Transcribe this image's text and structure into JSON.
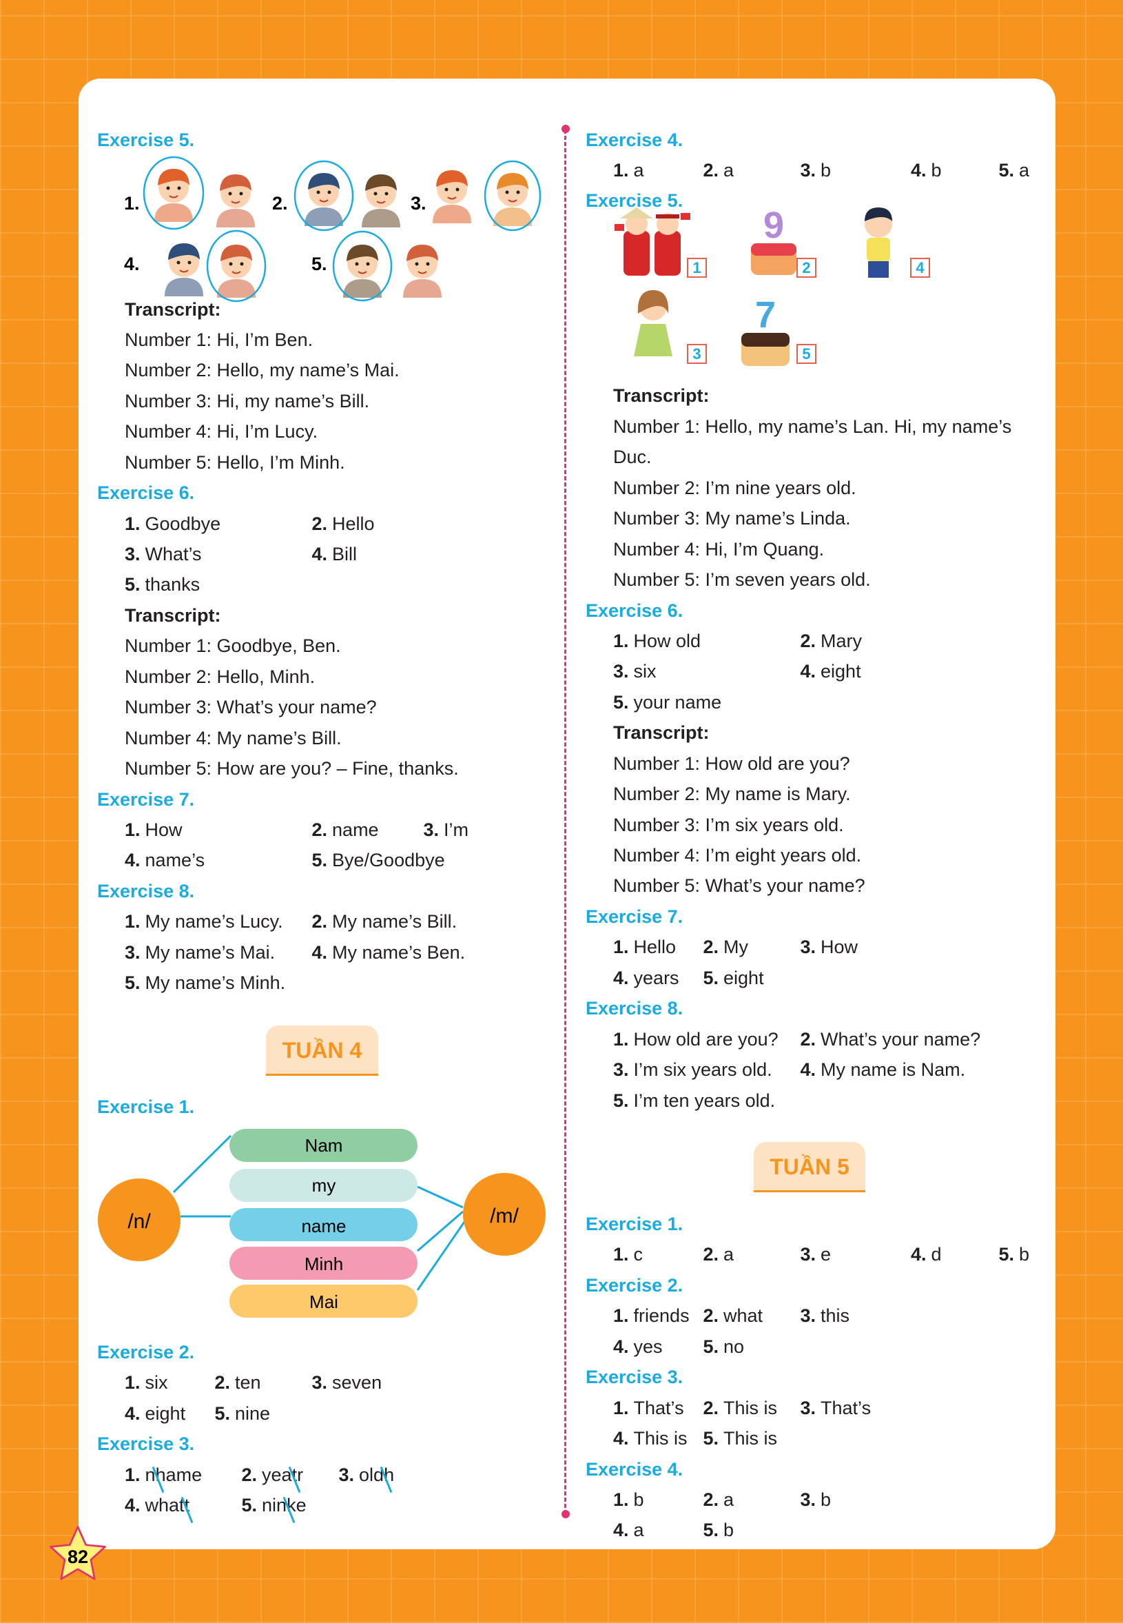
{
  "page_number": "82",
  "colors": {
    "background": "#f7941d",
    "heading": "#1aace0",
    "divider": "#e0336f",
    "tuan_label": "#f7941d"
  },
  "left": {
    "ex5": {
      "heading": "Exercise 5.",
      "numbers": [
        "1.",
        "2.",
        "3.",
        "4.",
        "5."
      ],
      "transcript_label": "Transcript:",
      "transcript": [
        "Number 1: Hi, I’m Ben.",
        "Number 2: Hello, my name’s Mai.",
        "Number 3: Hi, my name’s Bill.",
        "Number 4: Hi, I’m Lucy.",
        "Number 5: Hello, I’m Minh."
      ]
    },
    "ex6": {
      "heading": "Exercise 6.",
      "answers": [
        {
          "n": "1.",
          "t": "Goodbye"
        },
        {
          "n": "2.",
          "t": "Hello"
        },
        {
          "n": "3.",
          "t": "What’s"
        },
        {
          "n": "4.",
          "t": "Bill"
        },
        {
          "n": "5.",
          "t": "thanks"
        }
      ],
      "transcript_label": "Transcript:",
      "transcript": [
        "Number 1: Goodbye, Ben.",
        "Number 2: Hello, Minh.",
        "Number 3: What’s your name?",
        "Number 4: My name’s Bill.",
        "Number 5: How are you? – Fine, thanks."
      ]
    },
    "ex7": {
      "heading": "Exercise 7.",
      "answers": [
        {
          "n": "1.",
          "t": "How"
        },
        {
          "n": "2.",
          "t": "name"
        },
        {
          "n": "3.",
          "t": "I’m"
        },
        {
          "n": "4.",
          "t": "name’s"
        },
        {
          "n": "5.",
          "t": "Bye/Goodbye"
        }
      ]
    },
    "ex8": {
      "heading": "Exercise 8.",
      "answers": [
        {
          "n": "1.",
          "t": "My name’s Lucy."
        },
        {
          "n": "2.",
          "t": "My name’s Bill."
        },
        {
          "n": "3.",
          "t": "My name’s Mai."
        },
        {
          "n": "4.",
          "t": "My name’s Ben."
        },
        {
          "n": "5.",
          "t": "My name’s Minh."
        }
      ]
    },
    "tuan4": {
      "title": "TUẦN 4",
      "ex1": {
        "heading": "Exercise 1.",
        "left_sound": "/n/",
        "right_sound": "/m/",
        "words": [
          "Nam",
          "my",
          "name",
          "Minh",
          "Mai"
        ]
      },
      "ex2": {
        "heading": "Exercise 2.",
        "answers": [
          {
            "n": "1.",
            "t": "six"
          },
          {
            "n": "2.",
            "t": "ten"
          },
          {
            "n": "3.",
            "t": "seven"
          },
          {
            "n": "4.",
            "t": "eight"
          },
          {
            "n": "5.",
            "t": "nine"
          }
        ]
      },
      "ex3": {
        "heading": "Exercise 3.",
        "answers": [
          {
            "n": "1.",
            "pre": "n",
            "mark": "h",
            "post": "ame"
          },
          {
            "n": "2.",
            "pre": "yea",
            "mark": "t",
            "post": "r"
          },
          {
            "n": "3.",
            "pre": "old",
            "mark": "h",
            "post": ""
          },
          {
            "n": "4.",
            "pre": "what",
            "mark": "t",
            "post": ""
          },
          {
            "n": "5.",
            "pre": "nin",
            "mark": "k",
            "post": "e"
          }
        ]
      }
    }
  },
  "right": {
    "ex4": {
      "heading": "Exercise 4.",
      "answers": [
        {
          "n": "1.",
          "t": "a"
        },
        {
          "n": "2.",
          "t": "a"
        },
        {
          "n": "3.",
          "t": "b"
        },
        {
          "n": "4.",
          "t": "b"
        },
        {
          "n": "5.",
          "t": "a"
        }
      ]
    },
    "ex5": {
      "heading": "Exercise 5.",
      "labels": [
        "1",
        "2",
        "4",
        "3",
        "5"
      ],
      "transcript_label": "Transcript:",
      "transcript": [
        "Number 1: Hello, my name’s Lan. Hi, my name’s Duc.",
        "Number 2: I’m nine years old.",
        "Number 3: My name’s Linda.",
        "Number 4: Hi, I’m Quang.",
        "Number 5: I’m seven years old."
      ]
    },
    "ex6": {
      "heading": "Exercise 6.",
      "answers": [
        {
          "n": "1.",
          "t": "How old"
        },
        {
          "n": "2.",
          "t": "Mary"
        },
        {
          "n": "3.",
          "t": "six"
        },
        {
          "n": "4.",
          "t": "eight"
        },
        {
          "n": "5.",
          "t": "your name"
        }
      ],
      "transcript_label": "Transcript:",
      "transcript": [
        "Number 1: How old are you?",
        "Number 2: My name is Mary.",
        "Number 3: I’m six years old.",
        "Number 4: I’m eight years old.",
        "Number 5: What’s your name?"
      ]
    },
    "ex7": {
      "heading": "Exercise 7.",
      "answers": [
        {
          "n": "1.",
          "t": "Hello"
        },
        {
          "n": "2.",
          "t": "My"
        },
        {
          "n": "3.",
          "t": "How"
        },
        {
          "n": "4.",
          "t": "years"
        },
        {
          "n": "5.",
          "t": "eight"
        }
      ]
    },
    "ex8": {
      "heading": "Exercise 8.",
      "answers": [
        {
          "n": "1.",
          "t": "How old are you?"
        },
        {
          "n": "2.",
          "t": "What’s your name?"
        },
        {
          "n": "3.",
          "t": "I’m six years old."
        },
        {
          "n": "4.",
          "t": "My name is Nam."
        },
        {
          "n": "5.",
          "t": "I’m ten years old."
        }
      ]
    },
    "tuan5": {
      "title": "TUẦN 5",
      "ex1": {
        "heading": "Exercise 1.",
        "answers": [
          {
            "n": "1.",
            "t": "c"
          },
          {
            "n": "2.",
            "t": "a"
          },
          {
            "n": "3.",
            "t": "e"
          },
          {
            "n": "4.",
            "t": "d"
          },
          {
            "n": "5.",
            "t": "b"
          }
        ]
      },
      "ex2": {
        "heading": "Exercise 2.",
        "answers": [
          {
            "n": "1.",
            "t": "friends"
          },
          {
            "n": "2.",
            "t": "what"
          },
          {
            "n": "3.",
            "t": "this"
          },
          {
            "n": "4.",
            "t": "yes"
          },
          {
            "n": "5.",
            "t": "no"
          }
        ]
      },
      "ex3": {
        "heading": "Exercise 3.",
        "answers": [
          {
            "n": "1.",
            "t": "That’s"
          },
          {
            "n": "2.",
            "t": "This is"
          },
          {
            "n": "3.",
            "t": "That’s"
          },
          {
            "n": "4.",
            "t": "This is"
          },
          {
            "n": "5.",
            "t": "This is"
          }
        ]
      },
      "ex4": {
        "heading": "Exercise 4.",
        "answers": [
          {
            "n": "1.",
            "t": "b"
          },
          {
            "n": "2.",
            "t": "a"
          },
          {
            "n": "3.",
            "t": "b"
          },
          {
            "n": "4.",
            "t": "a"
          },
          {
            "n": "5.",
            "t": "b"
          }
        ]
      }
    }
  }
}
